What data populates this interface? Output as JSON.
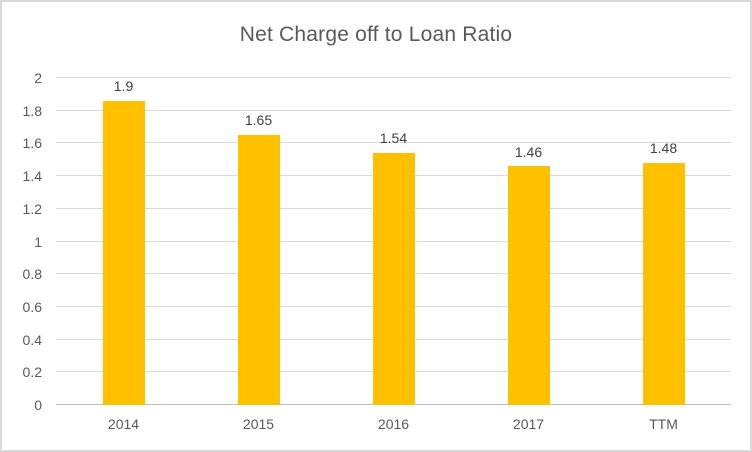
{
  "chart_data": {
    "type": "bar",
    "title": "Net Charge off to Loan Ratio",
    "categories": [
      "2014",
      "2015",
      "2016",
      "2017",
      "TTM"
    ],
    "values": [
      1.9,
      1.65,
      1.54,
      1.46,
      1.48
    ],
    "value_labels": [
      "1.9",
      "1.65",
      "1.54",
      "1.46",
      "1.48"
    ],
    "xlabel": "",
    "ylabel": "",
    "ylim": [
      0,
      2
    ],
    "y_ticks": [
      "0",
      "0.2",
      "0.4",
      "0.6",
      "0.8",
      "1",
      "1.2",
      "1.4",
      "1.6",
      "1.8",
      "2"
    ],
    "grid": true,
    "legend": "none",
    "colors": {
      "bar": "#FFC000",
      "gridline": "#D9D9D9",
      "axis_line": "#BFBFBF",
      "title_text": "#595959",
      "tick_text": "#595959",
      "value_label_text": "#404040",
      "frame_border": "#D9D9D9",
      "background": "#FFFFFF"
    }
  }
}
